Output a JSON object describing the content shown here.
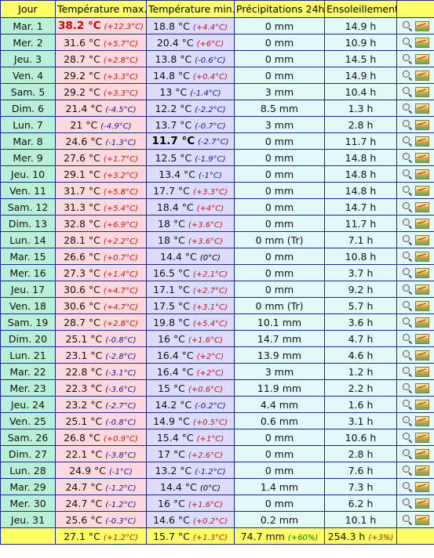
{
  "headers": [
    "Jour",
    "Température max.",
    "Température min.",
    "Précipitations 24h",
    "Ensoleillement",
    ""
  ],
  "rows": [
    {
      "day": "Mar. 1",
      "tmax": "38.2 °C",
      "tmax_anom": "(+12.3°C)",
      "tmin": "18.8 °C",
      "tmin_anom": "(+4.4°C)",
      "prec": "0 mm",
      "sun": "14.9 h"
    },
    {
      "day": "Mer. 2",
      "tmax": "31.6 °C",
      "tmax_anom": "(+5.7°C)",
      "tmin": "20.4 °C",
      "tmin_anom": "(+6°C)",
      "prec": "0 mm",
      "sun": "10.9 h"
    },
    {
      "day": "Jeu. 3",
      "tmax": "28.7 °C",
      "tmax_anom": "(+2.8°C)",
      "tmin": "13.8 °C",
      "tmin_anom": "(-0.6°C)",
      "prec": "0 mm",
      "sun": "14.5 h"
    },
    {
      "day": "Ven. 4",
      "tmax": "29.2 °C",
      "tmax_anom": "(+3.3°C)",
      "tmin": "14.8 °C",
      "tmin_anom": "(+0.4°C)",
      "prec": "0 mm",
      "sun": "14.9 h"
    },
    {
      "day": "Sam. 5",
      "tmax": "29.2 °C",
      "tmax_anom": "(+3.3°C)",
      "tmin": "13 °C",
      "tmin_anom": "(-1.4°C)",
      "prec": "3 mm",
      "sun": "10.4 h"
    },
    {
      "day": "Dim. 6",
      "tmax": "21.4 °C",
      "tmax_anom": "(-4.5°C)",
      "tmin": "12.2 °C",
      "tmin_anom": "(-2.2°C)",
      "prec": "8.5 mm",
      "sun": "1.3 h"
    },
    {
      "day": "Lun. 7",
      "tmax": "21 °C",
      "tmax_anom": "(-4.9°C)",
      "tmin": "13.7 °C",
      "tmin_anom": "(-0.7°C)",
      "prec": "3 mm",
      "sun": "2.8 h"
    },
    {
      "day": "Mar. 8",
      "tmax": "24.6 °C",
      "tmax_anom": "(-1.3°C)",
      "tmin": "11.7 °C",
      "tmin_anom": "(-2.7°C)",
      "prec": "0 mm",
      "sun": "11.7 h"
    },
    {
      "day": "Mer. 9",
      "tmax": "27.6 °C",
      "tmax_anom": "(+1.7°C)",
      "tmin": "12.5 °C",
      "tmin_anom": "(-1.9°C)",
      "prec": "0 mm",
      "sun": "14.8 h"
    },
    {
      "day": "Jeu. 10",
      "tmax": "29.1 °C",
      "tmax_anom": "(+3.2°C)",
      "tmin": "13.4 °C",
      "tmin_anom": "(-1°C)",
      "prec": "0 mm",
      "sun": "14.8 h"
    },
    {
      "day": "Ven. 11",
      "tmax": "31.7 °C",
      "tmax_anom": "(+5.8°C)",
      "tmin": "17.7 °C",
      "tmin_anom": "(+3.3°C)",
      "prec": "0 mm",
      "sun": "14.8 h"
    },
    {
      "day": "Sam. 12",
      "tmax": "31.3 °C",
      "tmax_anom": "(+5.4°C)",
      "tmin": "18.4 °C",
      "tmin_anom": "(+4°C)",
      "prec": "0 mm",
      "sun": "14.7 h"
    },
    {
      "day": "Dim. 13",
      "tmax": "32.8 °C",
      "tmax_anom": "(+6.9°C)",
      "tmin": "18 °C",
      "tmin_anom": "(+3.6°C)",
      "prec": "0 mm",
      "sun": "11.7 h"
    },
    {
      "day": "Lun. 14",
      "tmax": "28.1 °C",
      "tmax_anom": "(+2.2°C)",
      "tmin": "18 °C",
      "tmin_anom": "(+3.6°C)",
      "prec": "0 mm (Tr)",
      "sun": "7.1 h"
    },
    {
      "day": "Mar. 15",
      "tmax": "26.6 °C",
      "tmax_anom": "(+0.7°C)",
      "tmin": "14.4 °C",
      "tmin_anom": "(0°C)",
      "prec": "0 mm",
      "sun": "10.8 h"
    },
    {
      "day": "Mer. 16",
      "tmax": "27.3 °C",
      "tmax_anom": "(+1.4°C)",
      "tmin": "16.5 °C",
      "tmin_anom": "(+2.1°C)",
      "prec": "0 mm",
      "sun": "3.7 h"
    },
    {
      "day": "Jeu. 17",
      "tmax": "30.6 °C",
      "tmax_anom": "(+4.7°C)",
      "tmin": "17.1 °C",
      "tmin_anom": "(+2.7°C)",
      "prec": "0 mm",
      "sun": "9.2 h"
    },
    {
      "day": "Ven. 18",
      "tmax": "30.6 °C",
      "tmax_anom": "(+4.7°C)",
      "tmin": "17.5 °C",
      "tmin_anom": "(+3.1°C)",
      "prec": "0 mm (Tr)",
      "sun": "5.7 h"
    },
    {
      "day": "Sam. 19",
      "tmax": "28.7 °C",
      "tmax_anom": "(+2.8°C)",
      "tmin": "19.8 °C",
      "tmin_anom": "(+5.4°C)",
      "prec": "10.1 mm",
      "sun": "3.6 h"
    },
    {
      "day": "Dim. 20",
      "tmax": "25.1 °C",
      "tmax_anom": "(-0.8°C)",
      "tmin": "16 °C",
      "tmin_anom": "(+1.6°C)",
      "prec": "14.7 mm",
      "sun": "4.7 h"
    },
    {
      "day": "Lun. 21",
      "tmax": "23.1 °C",
      "tmax_anom": "(-2.8°C)",
      "tmin": "16.4 °C",
      "tmin_anom": "(+2°C)",
      "prec": "13.9 mm",
      "sun": "4.6 h"
    },
    {
      "day": "Mar. 22",
      "tmax": "22.8 °C",
      "tmax_anom": "(-3.1°C)",
      "tmin": "16.4 °C",
      "tmin_anom": "(+2°C)",
      "prec": "3 mm",
      "sun": "1.2 h"
    },
    {
      "day": "Mer. 23",
      "tmax": "22.3 °C",
      "tmax_anom": "(-3.6°C)",
      "tmin": "15 °C",
      "tmin_anom": "(+0.6°C)",
      "prec": "11.9 mm",
      "sun": "2.2 h"
    },
    {
      "day": "Jeu. 24",
      "tmax": "23.2 °C",
      "tmax_anom": "(-2.7°C)",
      "tmin": "14.2 °C",
      "tmin_anom": "(-0.2°C)",
      "prec": "4.4 mm",
      "sun": "1.6 h"
    },
    {
      "day": "Ven. 25",
      "tmax": "25.1 °C",
      "tmax_anom": "(-0.8°C)",
      "tmin": "14.9 °C",
      "tmin_anom": "(+0.5°C)",
      "prec": "0.6 mm",
      "sun": "3.1 h"
    },
    {
      "day": "Sam. 26",
      "tmax": "26.8 °C",
      "tmax_anom": "(+0.9°C)",
      "tmin": "15.4 °C",
      "tmin_anom": "(+1°C)",
      "prec": "0 mm",
      "sun": "10.6 h"
    },
    {
      "day": "Dim. 27",
      "tmax": "22.1 °C",
      "tmax_anom": "(-3.8°C)",
      "tmin": "17 °C",
      "tmin_anom": "(+2.6°C)",
      "prec": "0 mm",
      "sun": "2.8 h"
    },
    {
      "day": "Lun. 28",
      "tmax": "24.9 °C",
      "tmax_anom": "(-1°C)",
      "tmin": "13.2 °C",
      "tmin_anom": "(-1.2°C)",
      "prec": "0 mm",
      "sun": "7.6 h"
    },
    {
      "day": "Mar. 29",
      "tmax": "24.7 °C",
      "tmax_anom": "(-1.2°C)",
      "tmin": "14.4 °C",
      "tmin_anom": "(0°C)",
      "prec": "1.4 mm",
      "sun": "7.3 h"
    },
    {
      "day": "Mer. 30",
      "tmax": "24.7 °C",
      "tmax_anom": "(-1.2°C)",
      "tmin": "16 °C",
      "tmin_anom": "(+1.6°C)",
      "prec": "0 mm",
      "sun": "6.2 h"
    },
    {
      "day": "Jeu. 31",
      "tmax": "25.6 °C",
      "tmax_anom": "(-0.3°C)",
      "tmin": "14.6 °C",
      "tmin_anom": "(+0.2°C)",
      "prec": "0.2 mm",
      "sun": "10.1 h"
    }
  ],
  "total": {
    "tmax": "27.1 °C",
    "tmax_anom": "(+1.2°C)",
    "tmin": "15.7 °C",
    "tmin_anom": "(+1.3°C)",
    "prec": "74.7 mm",
    "prec_anom": "(+60%)",
    "sun": "254.3 h",
    "sun_anom": "(+3%)"
  },
  "records": {
    "hot_row": 0,
    "cold_row": 7
  },
  "icons": [
    "magnifier-icon",
    "chart-icon"
  ],
  "colors": {
    "header": "#ffff66",
    "day": "#b9f0d8",
    "tmax": "#ffd9de",
    "tmin": "#dcdcff",
    "other": "#e2fafa",
    "border": "#1a2a8a",
    "positive": "#cc1111",
    "negative": "#1111aa"
  }
}
